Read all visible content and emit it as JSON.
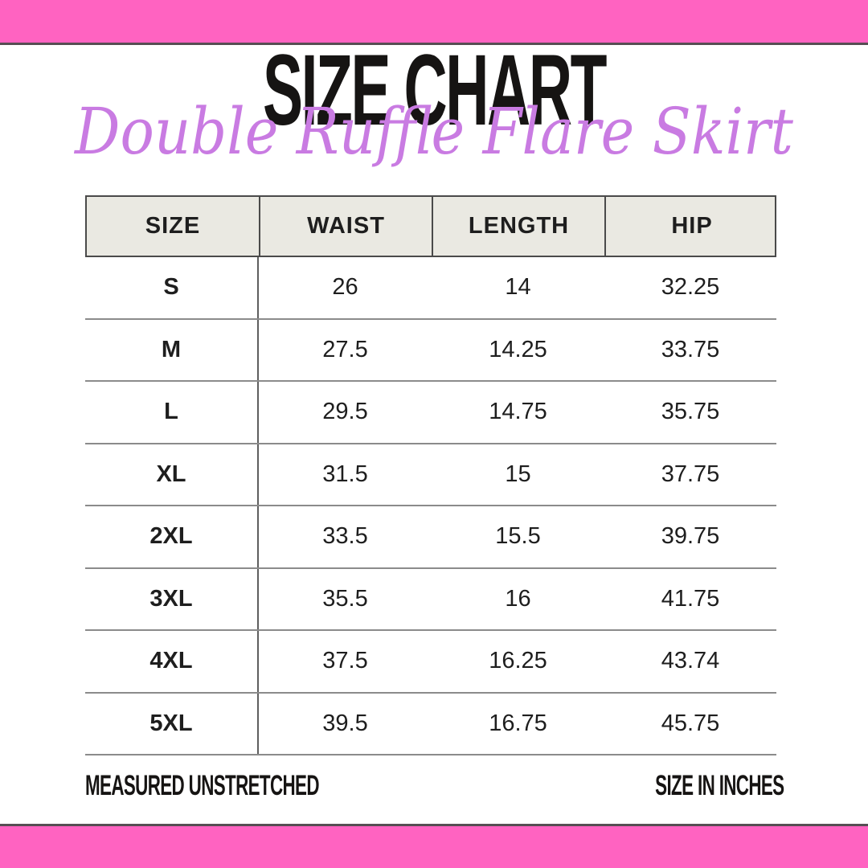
{
  "title": "SIZE CHART",
  "subtitle": "Double Ruffle Flare Skirt",
  "colors": {
    "pink": "#FF63C1",
    "bar_border": "#564E53",
    "header_bg": "#EAE9E2",
    "header_border": "#4A4A4A",
    "row_line": "#8B8B8B",
    "divider": "#5E5E5E",
    "text": "#1E1E1E",
    "subtitle": "#C97BE2"
  },
  "table": {
    "columns": [
      "SIZE",
      "WAIST",
      "LENGTH",
      "HIP"
    ],
    "rows": [
      {
        "size": "S",
        "waist": "26",
        "length": "14",
        "hip": "32.25"
      },
      {
        "size": "M",
        "waist": "27.5",
        "length": "14.25",
        "hip": "33.75"
      },
      {
        "size": "L",
        "waist": "29.5",
        "length": "14.75",
        "hip": "35.75"
      },
      {
        "size": "XL",
        "waist": "31.5",
        "length": "15",
        "hip": "37.75"
      },
      {
        "size": "2XL",
        "waist": "33.5",
        "length": "15.5",
        "hip": "39.75"
      },
      {
        "size": "3XL",
        "waist": "35.5",
        "length": "16",
        "hip": "41.75"
      },
      {
        "size": "4XL",
        "waist": "37.5",
        "length": "16.25",
        "hip": "43.74"
      },
      {
        "size": "5XL",
        "waist": "39.5",
        "length": "16.75",
        "hip": "45.75"
      }
    ]
  },
  "footer": {
    "left": "MEASURED UNSTRETCHED",
    "right": "SIZE IN INCHES"
  },
  "chart_data": {
    "type": "table",
    "title": "SIZE CHART",
    "subtitle": "Double Ruffle Flare Skirt",
    "columns": [
      "SIZE",
      "WAIST",
      "LENGTH",
      "HIP"
    ],
    "rows": [
      [
        "S",
        26,
        14,
        32.25
      ],
      [
        "M",
        27.5,
        14.25,
        33.75
      ],
      [
        "L",
        29.5,
        14.75,
        35.75
      ],
      [
        "XL",
        31.5,
        15,
        37.75
      ],
      [
        "2XL",
        33.5,
        15.5,
        39.75
      ],
      [
        "3XL",
        35.5,
        16,
        41.75
      ],
      [
        "4XL",
        37.5,
        16.25,
        43.74
      ],
      [
        "5XL",
        39.5,
        16.75,
        45.75
      ]
    ],
    "notes": [
      "MEASURED UNSTRETCHED",
      "SIZE IN INCHES"
    ]
  }
}
